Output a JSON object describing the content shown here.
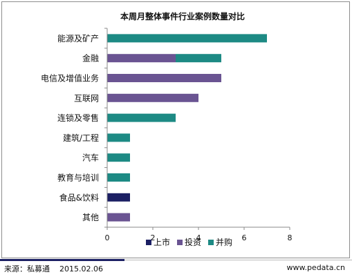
{
  "chart_data": {
    "type": "bar",
    "orientation": "horizontal",
    "stacked": true,
    "title": "本周月整体事件行业案例数量对比",
    "categories": [
      "能源及矿产",
      "金融",
      "电信及增值业务",
      "互联网",
      "连锁及零售",
      "建筑/工程",
      "汽车",
      "教育与培训",
      "食品&饮料",
      "其他"
    ],
    "series": [
      {
        "name": "上市",
        "color": "#1b1f63",
        "values": [
          0,
          0,
          0,
          0,
          0,
          0,
          0,
          0,
          1,
          0
        ]
      },
      {
        "name": "投资",
        "color": "#6a5492",
        "values": [
          0,
          3,
          5,
          4,
          0,
          0,
          0,
          0,
          0,
          1
        ]
      },
      {
        "name": "并购",
        "color": "#1d8a84",
        "values": [
          7,
          2,
          0,
          0,
          3,
          1,
          1,
          1,
          0,
          0
        ]
      }
    ],
    "xlim": [
      0,
      8
    ],
    "xticks": [
      0,
      2,
      4,
      6,
      8
    ],
    "grid": false,
    "legend_position": "bottom"
  },
  "footer": {
    "source": "来源：私募通",
    "date": "2015.02.06",
    "site": "www.pedata.cn"
  }
}
